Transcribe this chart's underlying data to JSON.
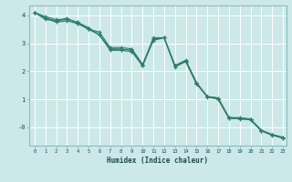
{
  "title": "",
  "xlabel": "Humidex (Indice chaleur)",
  "ylabel": "",
  "bg_color": "#cce8e8",
  "grid_color": "#ffffff",
  "line_color": "#2e7d6e",
  "marker_color": "#2e7d6e",
  "xlim": [
    -0.5,
    23.3
  ],
  "ylim": [
    -0.65,
    4.35
  ],
  "xticks": [
    0,
    1,
    2,
    3,
    4,
    5,
    6,
    7,
    8,
    9,
    10,
    11,
    12,
    13,
    14,
    15,
    16,
    17,
    18,
    19,
    20,
    21,
    22,
    23
  ],
  "yticks": [
    4,
    3,
    2,
    1,
    0
  ],
  "ytick_labels": [
    "4",
    "3",
    "2",
    "1",
    "-0"
  ],
  "series": [
    [
      4.1,
      3.95,
      3.85,
      3.85,
      3.75,
      3.55,
      3.3,
      2.8,
      2.8,
      2.75,
      2.2,
      3.2,
      3.2,
      2.2,
      2.4,
      1.6,
      1.1,
      1.05,
      0.35,
      0.35,
      0.3,
      -0.1,
      -0.25,
      -0.35
    ],
    [
      4.1,
      3.9,
      3.8,
      3.9,
      3.7,
      3.5,
      3.4,
      2.85,
      2.85,
      2.8,
      2.25,
      3.15,
      3.2,
      2.15,
      2.35,
      1.55,
      1.1,
      1.05,
      0.35,
      0.32,
      0.28,
      -0.12,
      -0.27,
      -0.37
    ],
    [
      4.1,
      3.9,
      3.75,
      3.8,
      3.7,
      3.55,
      3.3,
      2.75,
      2.75,
      2.8,
      2.2,
      3.1,
      3.2,
      2.2,
      2.35,
      1.55,
      1.1,
      1.0,
      0.33,
      0.3,
      0.27,
      -0.12,
      -0.28,
      -0.38
    ],
    [
      4.1,
      3.85,
      3.8,
      3.85,
      3.75,
      3.5,
      3.3,
      2.8,
      2.75,
      2.7,
      2.2,
      3.15,
      3.2,
      2.2,
      2.38,
      1.58,
      1.08,
      1.02,
      0.32,
      0.32,
      0.28,
      -0.12,
      -0.27,
      -0.38
    ]
  ]
}
